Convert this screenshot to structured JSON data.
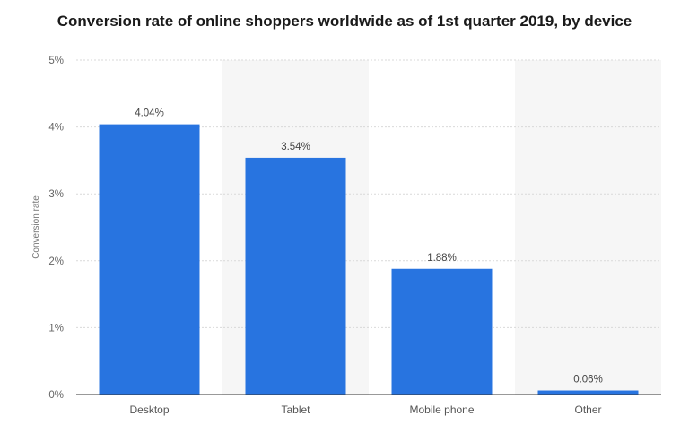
{
  "chart_data": {
    "type": "bar",
    "title": "Conversion rate of online shoppers worldwide as of 1st quarter 2019, by device",
    "xlabel": "",
    "ylabel": "Conversion rate",
    "categories": [
      "Desktop",
      "Tablet",
      "Mobile phone",
      "Other"
    ],
    "values": [
      4.04,
      3.54,
      1.88,
      0.06
    ],
    "value_labels": [
      "4.04%",
      "3.54%",
      "1.88%",
      "0.06%"
    ],
    "ylim": [
      0,
      5
    ],
    "yticks": [
      0,
      1,
      2,
      3,
      4,
      5
    ],
    "ytick_labels": [
      "0%",
      "1%",
      "2%",
      "3%",
      "4%",
      "5%"
    ],
    "grid": true,
    "alternating_band_background": true,
    "bar_color": "#2874e0",
    "band_color": "#f6f6f6",
    "grid_color": "#d9d9d9",
    "axis_color": "#333333"
  }
}
